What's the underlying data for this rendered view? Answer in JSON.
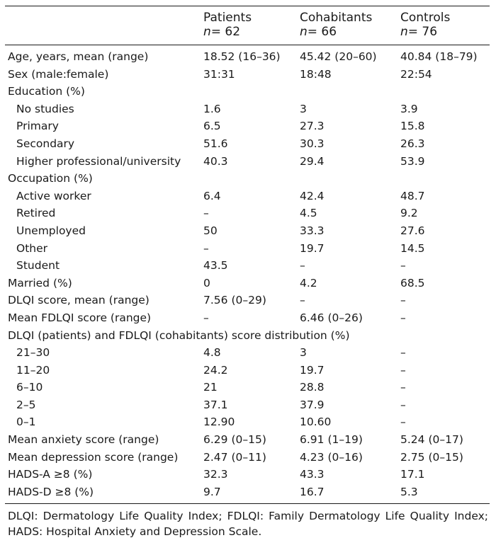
{
  "columns": [
    {
      "title": "Patients",
      "n_label": "n",
      "n_value": "= 62"
    },
    {
      "title": "Cohabitants",
      "n_label": "n",
      "n_value": "= 66"
    },
    {
      "title": "Controls",
      "n_label": "n",
      "n_value": "= 76"
    }
  ],
  "rows": [
    {
      "label": "Age, years, mean (range)",
      "indent": false,
      "values": [
        "18.52 (16–36)",
        "45.42 (20–60)",
        "40.84 (18–79)"
      ]
    },
    {
      "label": "Sex (male:female)",
      "indent": false,
      "values": [
        "31:31",
        "18:48",
        "22:54"
      ]
    },
    {
      "label": "Education (%)",
      "indent": false,
      "values": [
        "",
        "",
        ""
      ]
    },
    {
      "label": "No studies",
      "indent": true,
      "values": [
        "1.6",
        "3",
        "3.9"
      ]
    },
    {
      "label": "Primary",
      "indent": true,
      "values": [
        "6.5",
        "27.3",
        "15.8"
      ]
    },
    {
      "label": "Secondary",
      "indent": true,
      "values": [
        "51.6",
        "30.3",
        "26.3"
      ]
    },
    {
      "label": "Higher professional/university",
      "indent": true,
      "values": [
        "40.3",
        "29.4",
        "53.9"
      ]
    },
    {
      "label": "Occupation (%)",
      "indent": false,
      "values": [
        "",
        "",
        ""
      ]
    },
    {
      "label": "Active worker",
      "indent": true,
      "values": [
        "6.4",
        "42.4",
        "48.7"
      ]
    },
    {
      "label": "Retired",
      "indent": true,
      "values": [
        "–",
        "4.5",
        "9.2"
      ]
    },
    {
      "label": "Unemployed",
      "indent": true,
      "values": [
        "50",
        "33.3",
        "27.6"
      ]
    },
    {
      "label": "Other",
      "indent": true,
      "values": [
        "–",
        "19.7",
        "14.5"
      ]
    },
    {
      "label": "Student",
      "indent": true,
      "values": [
        "43.5",
        "–",
        "–"
      ]
    },
    {
      "label": "Married (%)",
      "indent": false,
      "values": [
        "0",
        "4.2",
        "68.5"
      ]
    },
    {
      "label": "DLQI score, mean (range)",
      "indent": false,
      "values": [
        "7.56 (0–29)",
        "–",
        "–"
      ]
    },
    {
      "label": "Mean FDLQI score (range)",
      "indent": false,
      "values": [
        "–",
        "6.46 (0–26)",
        "–"
      ]
    },
    {
      "label": "DLQI (patients) and FDLQI (cohabitants) score distribution (%)",
      "indent": false,
      "span": true,
      "values": []
    },
    {
      "label": "21–30",
      "indent": true,
      "values": [
        "4.8",
        "3",
        "–"
      ]
    },
    {
      "label": "11–20",
      "indent": true,
      "values": [
        "24.2",
        "19.7",
        "–"
      ]
    },
    {
      "label": "6–10",
      "indent": true,
      "values": [
        "21",
        "28.8",
        "–"
      ]
    },
    {
      "label": "2–5",
      "indent": true,
      "values": [
        "37.1",
        "37.9",
        "–"
      ]
    },
    {
      "label": "0–1",
      "indent": true,
      "values": [
        "12.90",
        "10.60",
        "–"
      ]
    },
    {
      "label": "Mean anxiety score (range)",
      "indent": false,
      "values": [
        "6.29 (0–15)",
        "6.91 (1–19)",
        "5.24 (0–17)"
      ]
    },
    {
      "label": "Mean depression score (range)",
      "indent": false,
      "values": [
        "2.47 (0–11)",
        "4.23 (0–16)",
        "2.75 (0–15)"
      ]
    },
    {
      "label": "HADS-A ≥8 (%)",
      "indent": false,
      "values": [
        "32.3",
        "43.3",
        "17.1"
      ]
    },
    {
      "label": "HADS-D ≥8 (%)",
      "indent": false,
      "values": [
        "9.7",
        "16.7",
        "5.3"
      ]
    }
  ],
  "footnote": "DLQI: Dermatology Life Quality Index; FDLQI: Family Dermatology Life Quality Index; HADS: Hospital Anxiety and Depression Scale."
}
